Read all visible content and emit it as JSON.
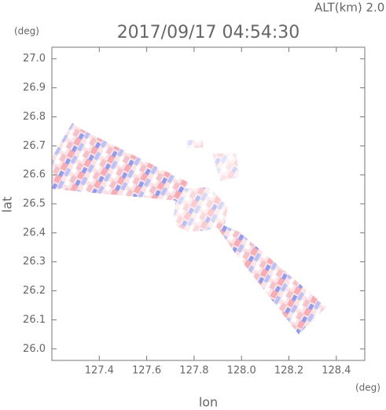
{
  "chart_data": {
    "type": "radar-scan",
    "title": "2017/09/17 04:54:30",
    "annotation": "ALT(km) 2.0",
    "x_label": "lon",
    "y_label": "lat",
    "x_unit": "(deg)",
    "y_unit": "(deg)",
    "xlim": [
      127.2,
      128.52
    ],
    "ylim": [
      25.96,
      27.04
    ],
    "xticks": [
      127.4,
      127.6,
      127.8,
      {
        "value": 128.0,
        "label": "128.0"
      },
      128.2,
      128.4
    ],
    "yticks": [
      {
        "value": 26.0,
        "label": "26.0"
      },
      26.1,
      26.2,
      26.3,
      26.4,
      26.5,
      26.6,
      26.7,
      26.8,
      26.9,
      {
        "value": 27.0,
        "label": "27.0"
      }
    ]
  }
}
